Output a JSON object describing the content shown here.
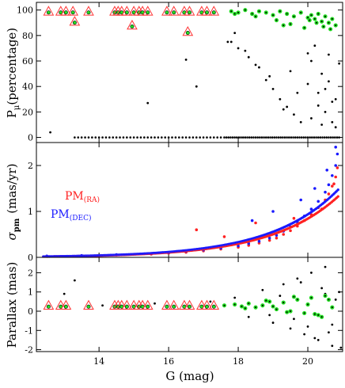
{
  "chart_data": [
    {
      "type": "scatter",
      "panel": "membership-probability",
      "ylabel_main": "P",
      "ylabel_sub": "μ",
      "ylabel_rest": "(percentage)",
      "xlim": [
        12.2,
        21.0
      ],
      "ylim": [
        -4,
        106
      ],
      "yticks": [
        0,
        20,
        40,
        60,
        80,
        100
      ],
      "series": [
        {
          "role": "field",
          "color": "#000000",
          "x": [
            12.6,
            17.7,
            17.9,
            18.0,
            18.3,
            18.6,
            18.8,
            19.0,
            19.2,
            19.4,
            19.6,
            19.8,
            20.0,
            20.1,
            20.2,
            20.3,
            20.4,
            20.5,
            20.6,
            20.7,
            20.8,
            15.4,
            16.5,
            16.8,
            17.8,
            18.2,
            18.5,
            18.9,
            19.3,
            19.7,
            20.1,
            20.4,
            20.6,
            20.8,
            19.5,
            20.0,
            20.3,
            20.5,
            20.7,
            20.9
          ],
          "y": [
            4,
            75,
            82,
            70,
            63,
            55,
            45,
            38,
            30,
            24,
            18,
            12,
            42,
            60,
            72,
            35,
            50,
            20,
            65,
            28,
            8,
            27,
            61,
            40,
            75,
            68,
            57,
            48,
            22,
            35,
            15,
            10,
            44,
            30,
            52,
            66,
            25,
            38,
            12,
            58
          ]
        },
        {
          "role": "members",
          "color": "#22dd22",
          "x": [
            17.8,
            18.0,
            18.2,
            18.4,
            18.6,
            18.8,
            19.0,
            19.2,
            19.4,
            19.6,
            19.8,
            20.0,
            20.1,
            20.2,
            20.3,
            20.4,
            20.5,
            20.6,
            20.7,
            20.8,
            19.1,
            19.5,
            19.9,
            20.25,
            20.45,
            20.65,
            17.9,
            18.5,
            19.3,
            20.05
          ],
          "y": [
            99,
            98,
            100,
            97,
            99,
            98,
            96,
            99,
            97,
            95,
            98,
            94,
            96,
            93,
            97,
            91,
            95,
            90,
            93,
            88,
            92,
            89,
            86,
            90,
            87,
            85,
            97,
            95,
            88,
            92
          ]
        },
        {
          "role": "bright-members",
          "color": "#ff3333",
          "x": [
            12.55,
            12.9,
            13.05,
            13.25,
            13.7,
            14.45,
            14.55,
            14.65,
            14.8,
            15.0,
            15.15,
            15.25,
            15.4,
            15.95,
            16.15,
            16.45,
            16.6,
            16.95,
            17.1,
            17.3,
            13.3,
            14.95,
            16.55
          ],
          "y": [
            99,
            99,
            99,
            99,
            99,
            99,
            99,
            99,
            99,
            99,
            99,
            99,
            99,
            99,
            99,
            99,
            99,
            99,
            99,
            99,
            91,
            88,
            83
          ]
        }
      ]
    },
    {
      "type": "scatter",
      "panel": "proper-motion-error",
      "ylabel_main": "σ",
      "ylabel_sub": "pm",
      "ylabel_rest": "(mas/yr)",
      "xlim": [
        12.2,
        21.0
      ],
      "ylim": [
        0,
        2.5
      ],
      "yticks": [
        0,
        1,
        2
      ],
      "legend": {
        "position": "top-left",
        "entries": [
          {
            "main": "PM",
            "sub": "(RA)",
            "color": "#ff2222"
          },
          {
            "main": "PM",
            "sub": "(DEC)",
            "color": "#1a1aff"
          }
        ]
      },
      "series": [
        {
          "name": "PM(RA)",
          "color": "#ff2222",
          "x": [
            12.5,
            13.5,
            14.5,
            15.5,
            16.0,
            16.5,
            17.0,
            17.5,
            18.0,
            18.3,
            18.6,
            18.9,
            19.1,
            19.3,
            19.5,
            19.7,
            19.9,
            20.1,
            20.3,
            20.5,
            20.6,
            20.7,
            20.8,
            20.85,
            16.8,
            17.6,
            18.5,
            19.6,
            20.4,
            20.75
          ],
          "y": [
            0.02,
            0.03,
            0.05,
            0.07,
            0.09,
            0.11,
            0.14,
            0.18,
            0.22,
            0.26,
            0.31,
            0.37,
            0.42,
            0.5,
            0.58,
            0.68,
            0.8,
            0.93,
            1.08,
            1.25,
            1.38,
            1.55,
            1.75,
            1.95,
            0.6,
            0.45,
            0.75,
            0.85,
            1.05,
            1.6
          ]
        },
        {
          "name": "PM(DEC)",
          "color": "#1a1aff",
          "x": [
            12.5,
            13.5,
            14.5,
            15.5,
            16.0,
            16.5,
            17.0,
            17.5,
            18.0,
            18.3,
            18.6,
            18.9,
            19.1,
            19.3,
            19.5,
            19.7,
            19.9,
            20.1,
            20.3,
            20.5,
            20.6,
            20.7,
            20.8,
            20.85,
            18.4,
            19.0,
            19.8,
            20.2,
            20.55,
            20.8
          ],
          "y": [
            0.03,
            0.04,
            0.06,
            0.08,
            0.1,
            0.13,
            0.16,
            0.2,
            0.25,
            0.3,
            0.35,
            0.42,
            0.48,
            0.57,
            0.66,
            0.77,
            0.9,
            1.05,
            1.22,
            1.42,
            1.58,
            1.78,
            2.0,
            2.25,
            0.8,
            1.0,
            1.25,
            1.5,
            1.9,
            2.4
          ]
        }
      ]
    },
    {
      "type": "scatter",
      "panel": "parallax",
      "ylabel": "Parallax (mas)",
      "xlabel": "G (mag)",
      "xlim": [
        12.2,
        21.0
      ],
      "ylim": [
        -2.1,
        2.8
      ],
      "xticks": [
        14,
        16,
        18,
        20
      ],
      "yticks": [
        -2,
        -1,
        0,
        1,
        2
      ],
      "series": [
        {
          "role": "field",
          "color": "#000000",
          "x": [
            13.3,
            13.0,
            14.1,
            15.6,
            17.2,
            17.9,
            18.3,
            18.7,
            19.0,
            19.3,
            19.5,
            19.7,
            19.9,
            20.1,
            20.3,
            20.5,
            20.7,
            20.9,
            19.2,
            19.6,
            20.0,
            20.4,
            20.6,
            20.8,
            18.9,
            19.8,
            20.2,
            20.5,
            20.7,
            20.95
          ],
          "y": [
            1.6,
            0.9,
            0.3,
            0.4,
            0.5,
            0.7,
            -0.3,
            1.1,
            -0.6,
            1.4,
            -0.9,
            1.7,
            -1.2,
            2.0,
            -1.5,
            2.3,
            -1.8,
            1.0,
            0.8,
            -0.4,
            -0.8,
            1.2,
            -1.1,
            0.6,
            -0.2,
            1.5,
            -1.4,
            0.9,
            -0.7,
            -1.9
          ]
        },
        {
          "role": "members",
          "color": "#22dd22",
          "x": [
            17.6,
            17.9,
            18.1,
            18.3,
            18.5,
            18.7,
            18.9,
            19.1,
            19.3,
            19.5,
            19.7,
            19.9,
            20.1,
            20.3,
            20.5,
            20.7,
            18.2,
            18.8,
            19.4,
            20.0,
            20.4,
            20.6,
            19.0,
            19.6,
            20.2
          ],
          "y": [
            0.3,
            0.35,
            0.25,
            0.4,
            0.2,
            0.3,
            0.5,
            0.1,
            0.45,
            0.0,
            0.6,
            -0.1,
            0.7,
            -0.2,
            0.8,
            0.2,
            0.15,
            0.55,
            -0.05,
            0.35,
            -0.3,
            0.6,
            0.25,
            0.75,
            -0.15
          ]
        },
        {
          "role": "bright-members",
          "color": "#ff3333",
          "x": [
            12.55,
            12.9,
            13.05,
            13.7,
            14.45,
            14.55,
            14.65,
            14.8,
            15.0,
            15.15,
            15.25,
            15.4,
            15.95,
            16.15,
            16.45,
            16.6,
            16.95,
            17.1,
            17.3
          ],
          "y": [
            0.3,
            0.3,
            0.3,
            0.3,
            0.3,
            0.3,
            0.3,
            0.3,
            0.3,
            0.3,
            0.3,
            0.3,
            0.3,
            0.3,
            0.3,
            0.3,
            0.3,
            0.3,
            0.3
          ]
        }
      ]
    }
  ]
}
